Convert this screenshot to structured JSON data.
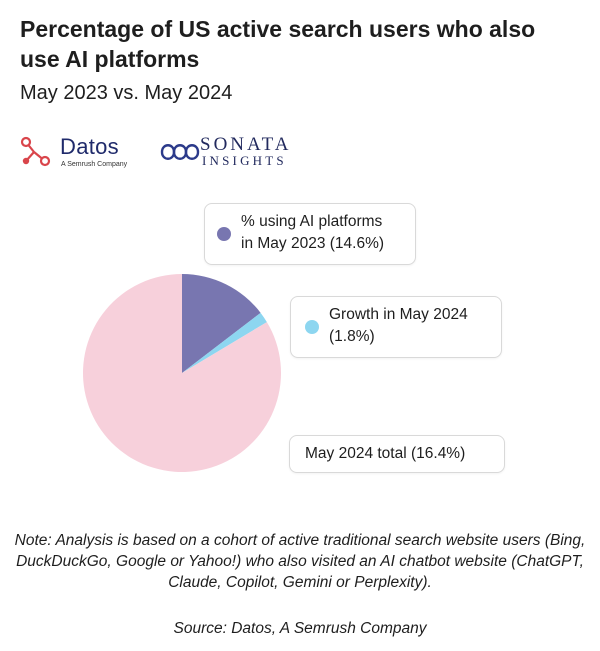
{
  "header": {
    "title": "Percentage of US active search users who also use AI platforms",
    "subtitle": "May 2023 vs. May 2024"
  },
  "logos": {
    "datos_name": "Datos",
    "datos_tagline": "A Semrush Company",
    "sonata_name": "SONATA",
    "sonata_sub": "INSIGHTS"
  },
  "colors": {
    "may2023": "#7876b0",
    "growth": "#8dd6f0",
    "rest": "#f7d0db",
    "brand_red": "#d9454b",
    "brand_navy": "#1f2a6b"
  },
  "chart_data": {
    "type": "pie",
    "title": "Percentage of US active search users who also use AI platforms",
    "subtitle": "May 2023 vs. May 2024",
    "slices": [
      {
        "label": "% using AI platforms in May 2023 (14.6%)",
        "value": 14.6,
        "color": "#7876b0"
      },
      {
        "label": "Growth in May 2024 (1.8%)",
        "value": 1.8,
        "color": "#8dd6f0"
      },
      {
        "label": "",
        "value": 83.6,
        "color": "#f7d0db"
      }
    ],
    "annotations": [
      "% using AI platforms in May 2023 (14.6%)",
      "Growth in May 2024 (1.8%)",
      "May 2024 total (16.4%)"
    ],
    "callouts": {
      "may2023_line1": "% using AI platforms",
      "may2023_line2": "in May 2023 (14.6%)",
      "growth_line1": "Growth in May 2024",
      "growth_line2": "(1.8%)",
      "total": "May 2024 total (16.4%)"
    }
  },
  "footer": {
    "note": "Note: Analysis is based on a cohort of active traditional search website users (Bing, DuckDuckGo, Google or Yahoo!) who also visited an AI chatbot website (ChatGPT, Claude, Copilot, Gemini or Perplexity).",
    "source": "Source: Datos, A Semrush Company"
  }
}
